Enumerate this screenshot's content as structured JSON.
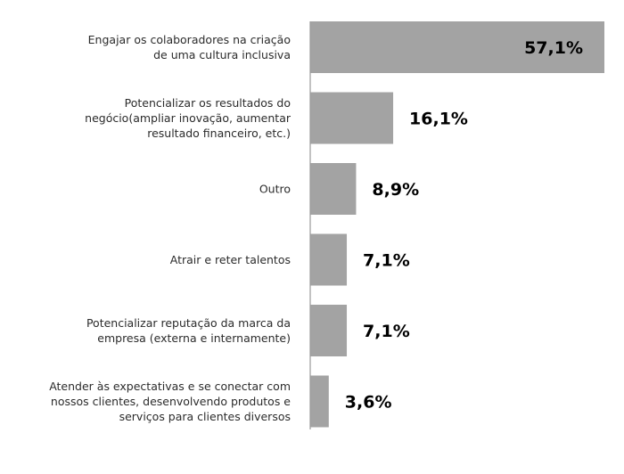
{
  "chart_data": {
    "type": "bar",
    "orientation": "horizontal",
    "categories": [
      [
        "Engajar os colaboradores na criação",
        "de uma cultura inclusiva"
      ],
      [
        "Potencializar os resultados do",
        "negócio(ampliar inovação, aumentar",
        "resultado financeiro, etc.)"
      ],
      [
        "Outro"
      ],
      [
        "Atrair e reter talentos"
      ],
      [
        "Potencializar reputação da marca da",
        "empresa (externa e internamente)"
      ],
      [
        "Atender às expectativas e se conectar com",
        "nossos clientes, desenvolvendo produtos e",
        "serviços para clientes diversos"
      ]
    ],
    "values": [
      57.1,
      16.1,
      8.9,
      7.1,
      7.1,
      3.6
    ],
    "value_labels": [
      "57,1%",
      "16,1%",
      "8,9%",
      "7,1%",
      "7,1%",
      "3,6%"
    ],
    "xlim": [
      0,
      57.1
    ],
    "title": "",
    "xlabel": "",
    "ylabel": "",
    "grid": false,
    "legend": "none"
  },
  "colors": {
    "bar": "#a3a3a3",
    "axis": "#9a9a9a",
    "label": "#2b2b2b",
    "value": "#000000"
  }
}
